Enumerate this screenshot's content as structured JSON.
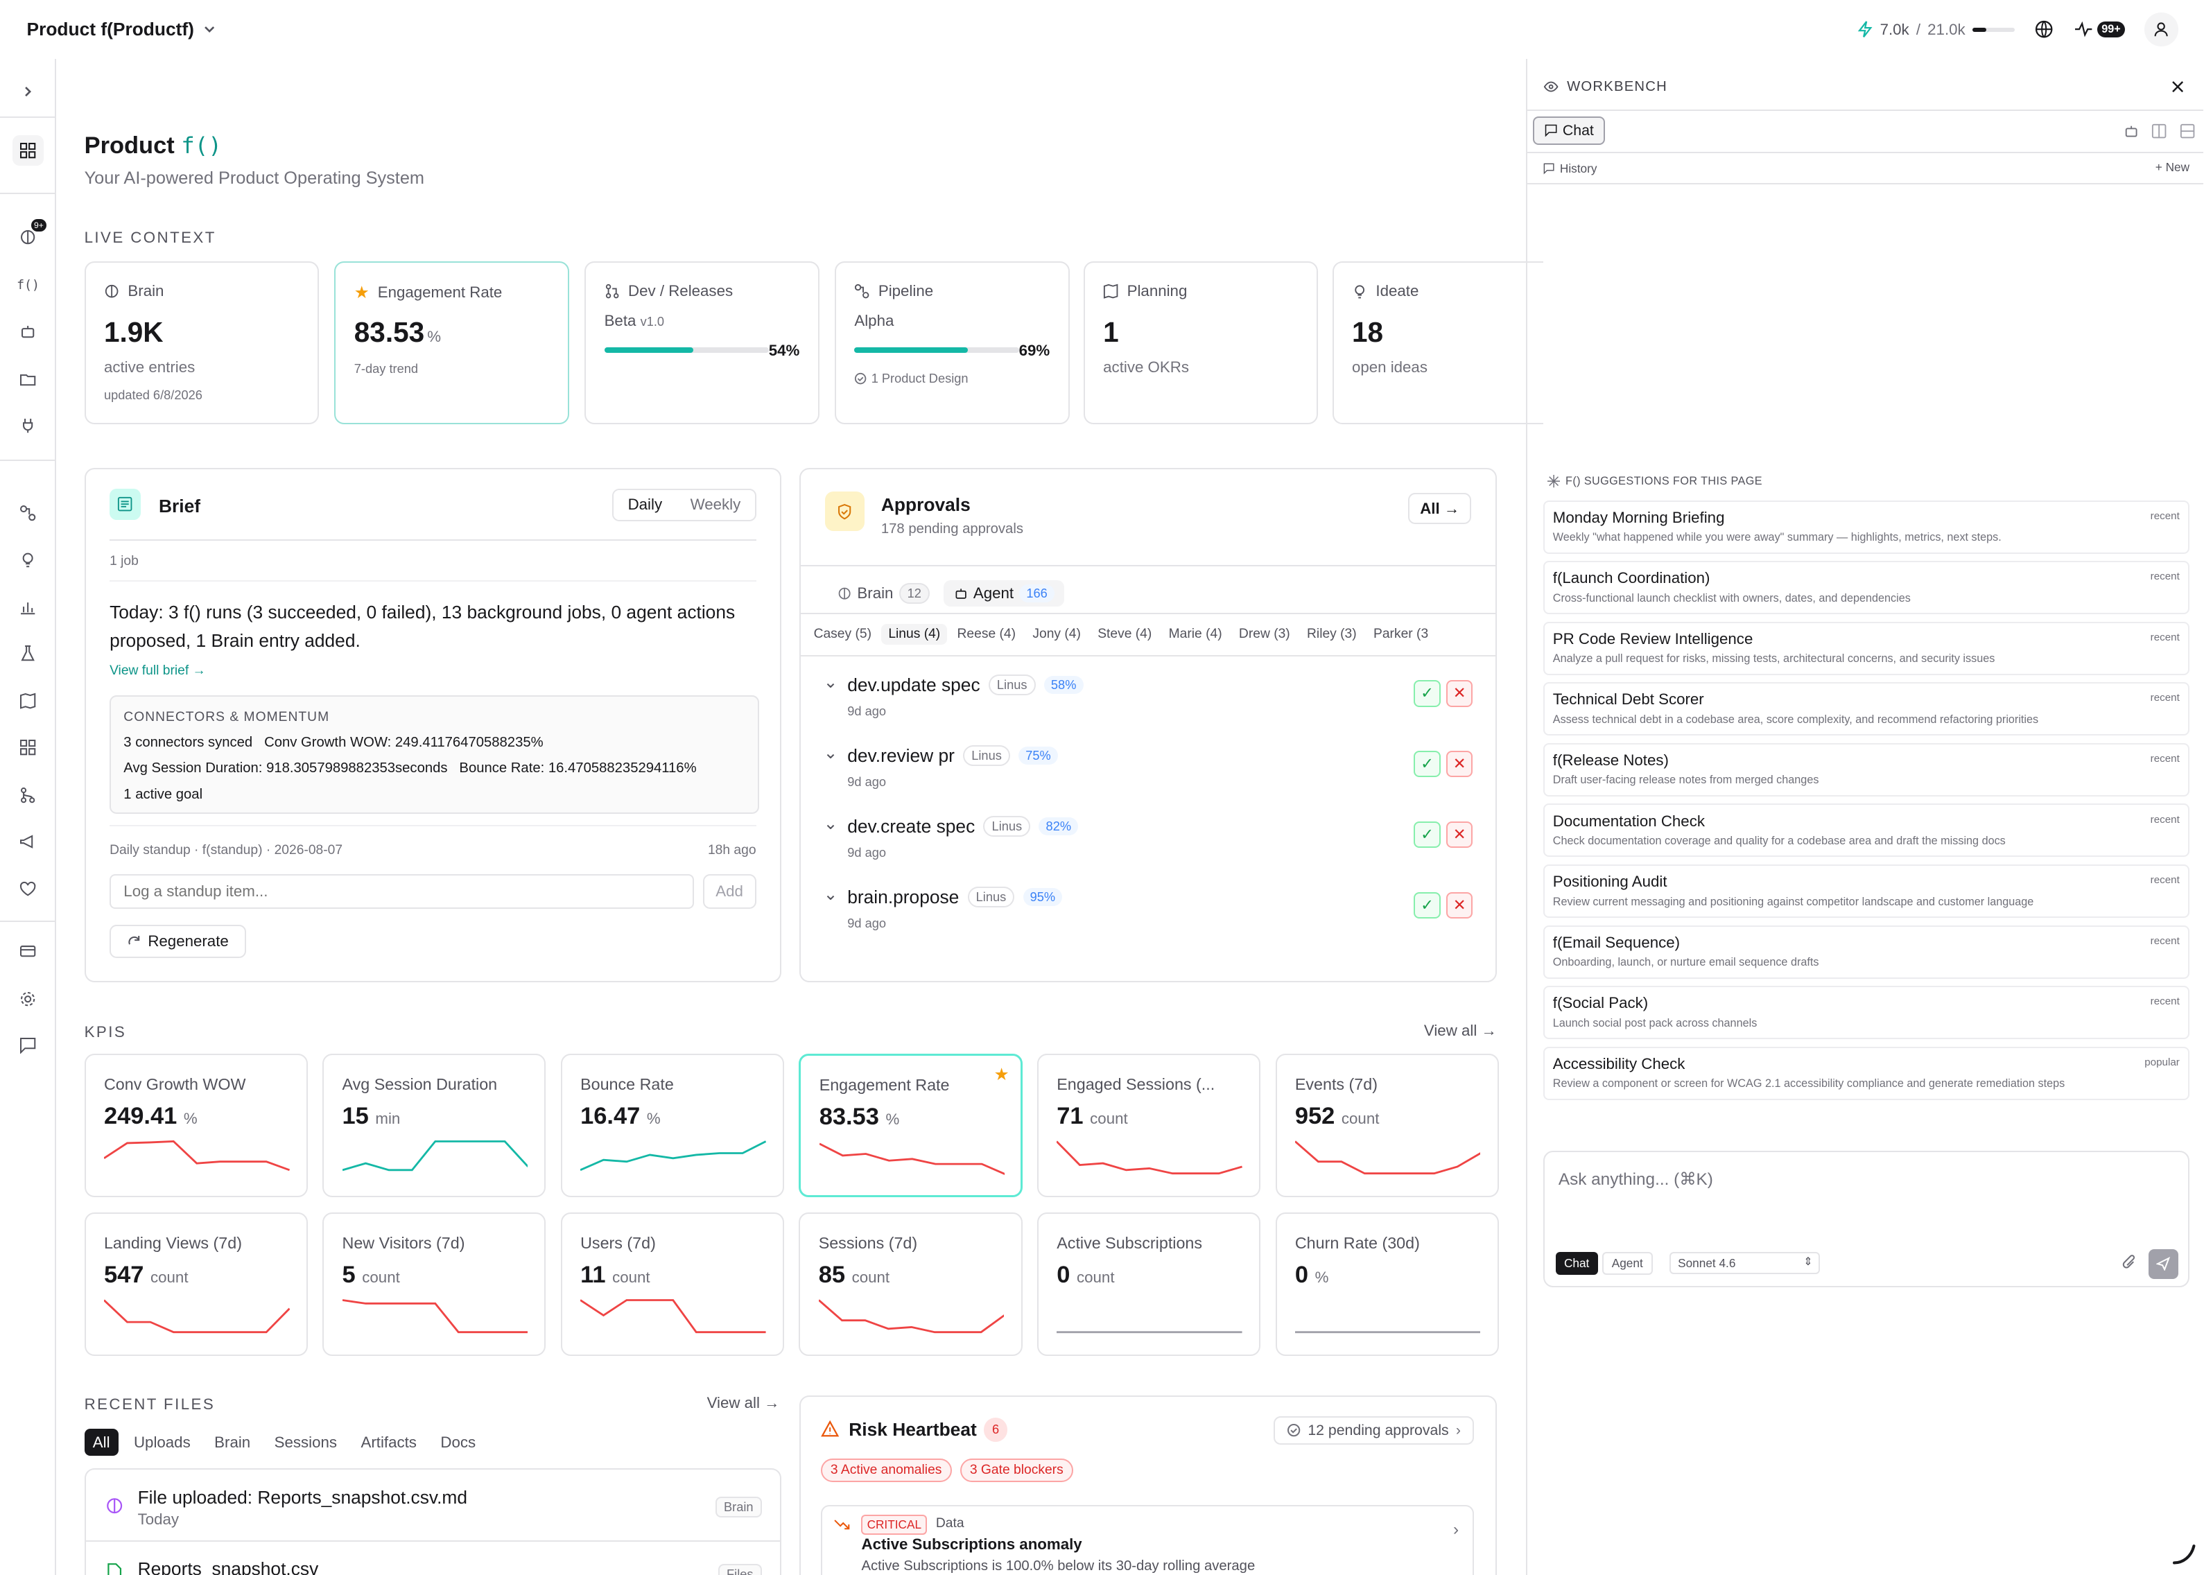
{
  "topbar": {
    "workspace": "Product f(Productf)",
    "usage_used": "7.0k",
    "usage_sep": " / ",
    "usage_total": "21.0k",
    "usage_fraction": 0.33,
    "notif_count": "99+"
  },
  "rail": {
    "badge": "9+",
    "fn_label": "f()"
  },
  "header": {
    "title": "Product ",
    "title_mono": "f()",
    "subtitle": "Your AI-powered Product Operating System"
  },
  "live_context": {
    "label": "LIVE CONTEXT",
    "cards": [
      {
        "title": "Brain",
        "value": "1.9K",
        "sub": "active entries",
        "foot": "updated 6/8/2026"
      },
      {
        "title": "Engagement Rate",
        "value": "83.53",
        "unit": "%",
        "sub": "7-day trend"
      },
      {
        "title": "Dev / Releases",
        "stage": "Beta",
        "version": "v1.0",
        "progress": "54%",
        "progress_value": 0.54
      },
      {
        "title": "Pipeline",
        "stage": "Alpha",
        "progress": "69%",
        "progress_value": 0.69,
        "foot": "1 Product Design"
      },
      {
        "title": "Planning",
        "value": "1",
        "sub": "active OKRs"
      },
      {
        "title": "Ideate",
        "value": "18",
        "sub": "open ideas"
      }
    ]
  },
  "brief": {
    "title": "Brief",
    "tabs": [
      "Daily",
      "Weekly"
    ],
    "jobs": "1 job",
    "summary": "Today: 3 f() runs (3 succeeded, 0 failed), 13 background jobs, 0 agent actions proposed, 1 Brain entry added.",
    "link": "View full brief →",
    "connectors_title": "CONNECTORS & MOMENTUM",
    "c_line1a": "3 connectors synced",
    "c_line1b": "Conv Growth WOW: 249.41176470588235%",
    "c_line2a": "Avg Session Duration: 918.3057989882353seconds",
    "c_line2b": "Bounce Rate: 16.470588235294116%",
    "c_line3": "1 active goal",
    "standup": "Daily standup · f(standup) · 2026-08-07",
    "standup_ago": "18h ago",
    "input_placeholder": "Log a standup item...",
    "add": "Add",
    "regenerate": "Regenerate"
  },
  "approvals": {
    "title": "Approvals",
    "subtitle": "178 pending approvals",
    "all": "All →",
    "tab_brain": "Brain",
    "brain_count": "12",
    "tab_agent": "Agent",
    "agent_count": "166",
    "people": [
      "Casey (5)",
      "Linus (4)",
      "Reese (4)",
      "Jony (4)",
      "Steve (4)",
      "Marie (4)",
      "Drew (3)",
      "Riley (3)",
      "Parker (3"
    ],
    "items": [
      {
        "name": "dev.update spec",
        "owner": "Linus",
        "conf": "58%",
        "ago": "9d ago"
      },
      {
        "name": "dev.review pr",
        "owner": "Linus",
        "conf": "75%",
        "ago": "9d ago"
      },
      {
        "name": "dev.create spec",
        "owner": "Linus",
        "conf": "82%",
        "ago": "9d ago"
      },
      {
        "name": "brain.propose",
        "owner": "Linus",
        "conf": "95%",
        "ago": "9d ago"
      }
    ]
  },
  "kpis": {
    "label": "KPIS",
    "view_all": "View all →",
    "items": [
      {
        "title": "Conv Growth WOW",
        "value": "249.41",
        "unit": "%",
        "trend": [
          0.45,
          0.9,
          0.92,
          0.95,
          0.3,
          0.35,
          0.35,
          0.35,
          0.1
        ],
        "color": "#ef4444"
      },
      {
        "title": "Avg Session Duration",
        "value": "15",
        "unit": "min",
        "trend": [
          0.1,
          0.3,
          0.1,
          0.1,
          0.95,
          0.95,
          0.95,
          0.95,
          0.2
        ],
        "color": "#14b8a6"
      },
      {
        "title": "Bounce Rate",
        "value": "16.47",
        "unit": "%",
        "trend": [
          0.1,
          0.4,
          0.35,
          0.55,
          0.45,
          0.55,
          0.6,
          0.6,
          0.95
        ],
        "color": "#14b8a6"
      },
      {
        "title": "Engagement Rate",
        "value": "83.53",
        "unit": "%",
        "trend": [
          0.9,
          0.55,
          0.6,
          0.4,
          0.45,
          0.3,
          0.3,
          0.3,
          0.0
        ],
        "color": "#ef4444",
        "starred": true
      },
      {
        "title": "Engaged Sessions (...",
        "value": "71",
        "unit": "count",
        "trend": [
          0.95,
          0.25,
          0.3,
          0.1,
          0.15,
          0.0,
          0.0,
          0.0,
          0.2
        ],
        "color": "#ef4444"
      },
      {
        "title": "Events (7d)",
        "value": "952",
        "unit": "count",
        "trend": [
          0.95,
          0.35,
          0.35,
          0.0,
          0.0,
          0.0,
          0.0,
          0.2,
          0.6
        ],
        "color": "#ef4444"
      },
      {
        "title": "Landing Views (7d)",
        "value": "547",
        "unit": "count",
        "trend": [
          0.95,
          0.3,
          0.3,
          0.0,
          0.0,
          0.0,
          0.0,
          0.0,
          0.7
        ],
        "color": "#ef4444"
      },
      {
        "title": "New Visitors (7d)",
        "value": "5",
        "unit": "count",
        "trend": [
          0.95,
          0.85,
          0.85,
          0.85,
          0.85,
          0.0,
          0.0,
          0.0,
          0.0
        ],
        "color": "#ef4444"
      },
      {
        "title": "Users (7d)",
        "value": "11",
        "unit": "count",
        "trend": [
          0.95,
          0.5,
          0.95,
          0.95,
          0.95,
          0.0,
          0.0,
          0.0,
          0.0
        ],
        "color": "#ef4444"
      },
      {
        "title": "Sessions (7d)",
        "value": "85",
        "unit": "count",
        "trend": [
          0.95,
          0.35,
          0.35,
          0.1,
          0.15,
          0.0,
          0.0,
          0.0,
          0.5
        ],
        "color": "#ef4444"
      },
      {
        "title": "Active Subscriptions",
        "value": "0",
        "unit": "count",
        "trend": [
          0,
          0,
          0,
          0,
          0,
          0,
          0,
          0,
          0
        ],
        "color": "#a1a1aa"
      },
      {
        "title": "Churn Rate (30d)",
        "value": "0",
        "unit": "%",
        "trend": [
          0,
          0,
          0,
          0,
          0,
          0,
          0,
          0,
          0
        ],
        "color": "#a1a1aa"
      }
    ]
  },
  "files": {
    "label": "RECENT FILES",
    "view_all": "View all →",
    "tabs": [
      "All",
      "Uploads",
      "Brain",
      "Sessions",
      "Artifacts",
      "Docs"
    ],
    "items": [
      {
        "name": "File uploaded: Reports_snapshot.csv.md",
        "when": "Today",
        "tag": "Brain"
      },
      {
        "name": "Reports_snapshot.csv",
        "when": "",
        "tag": "Files"
      }
    ]
  },
  "risk": {
    "title": "Risk Heartbeat",
    "count": "6",
    "pending": "12 pending approvals",
    "chip1": "3 Active anomalies",
    "chip2": "3 Gate blockers",
    "item": {
      "level": "CRITICAL",
      "cat": "Data",
      "title": "Active Subscriptions anomaly",
      "desc": "Active Subscriptions is 100.0% below its 30-day rolling average"
    }
  },
  "workbench": {
    "title": "WORKBENCH",
    "chat_tab": "Chat",
    "history": "History",
    "new": "New",
    "suggest_label": "F() SUGGESTIONS FOR THIS PAGE",
    "suggestions": [
      {
        "title": "Monday Morning Briefing",
        "desc": "Weekly \"what happened while you were away\" summary — highlights, metrics, next steps.",
        "tag": "recent"
      },
      {
        "title": "f(Launch Coordination)",
        "desc": "Cross-functional launch checklist with owners, dates, and dependencies",
        "tag": "recent"
      },
      {
        "title": "PR Code Review Intelligence",
        "desc": "Analyze a pull request for risks, missing tests, architectural concerns, and security issues",
        "tag": "recent"
      },
      {
        "title": "Technical Debt Scorer",
        "desc": "Assess technical debt in a codebase area, score complexity, and recommend refactoring priorities",
        "tag": "recent"
      },
      {
        "title": "f(Release Notes)",
        "desc": "Draft user-facing release notes from merged changes",
        "tag": "recent"
      },
      {
        "title": "Documentation Check",
        "desc": "Check documentation coverage and quality for a codebase area and draft the missing docs",
        "tag": "recent"
      },
      {
        "title": "Positioning Audit",
        "desc": "Review current messaging and positioning against competitor landscape and customer language",
        "tag": "recent"
      },
      {
        "title": "f(Email Sequence)",
        "desc": "Onboarding, launch, or nurture email sequence drafts",
        "tag": "recent"
      },
      {
        "title": "f(Social Pack)",
        "desc": "Launch social post pack across channels",
        "tag": "recent"
      },
      {
        "title": "Accessibility Check",
        "desc": "Review a component or screen for WCAG 2.1 accessibility compliance and generate remediation steps",
        "tag": "popular"
      }
    ],
    "ask_placeholder": "Ask anything... (⌘K)",
    "mode_chat": "Chat",
    "mode_agent": "Agent",
    "model": "Sonnet 4.6"
  }
}
